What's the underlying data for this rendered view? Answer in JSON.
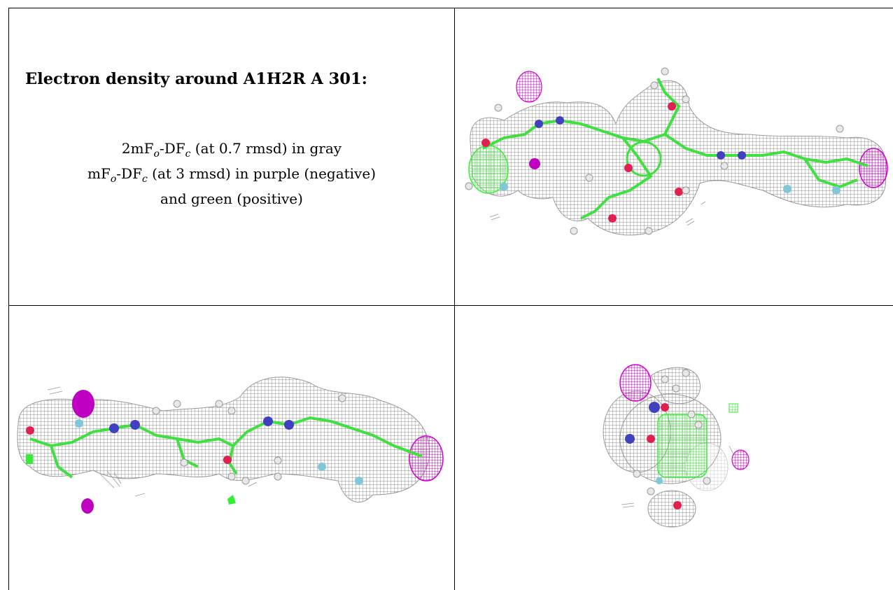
{
  "header": {
    "title": "Electron density around A1H2R A 301:"
  },
  "legend": {
    "line1": {
      "pre": "2mF",
      "sub1": "o",
      "mid": "-DF",
      "sub2": "c",
      "post": " (at 0.7 rmsd) in gray"
    },
    "line2": {
      "pre": "mF",
      "sub1": "o",
      "mid": "-DF",
      "sub2": "c",
      "post": " (at 3 rmsd) in purple (negative)"
    },
    "line3": "and green (positive)"
  },
  "colors": {
    "mesh_gray": "#8c8c8c",
    "negative_purple": "#d000d0",
    "positive_green": "#33ee33",
    "carbon_green": "#40e040",
    "nitrogen_blue": "#4040c0",
    "oxygen_red": "#e02050",
    "fluorine_cyan": "#80c8d8",
    "hydrogen_white": "#e8e8e8"
  }
}
